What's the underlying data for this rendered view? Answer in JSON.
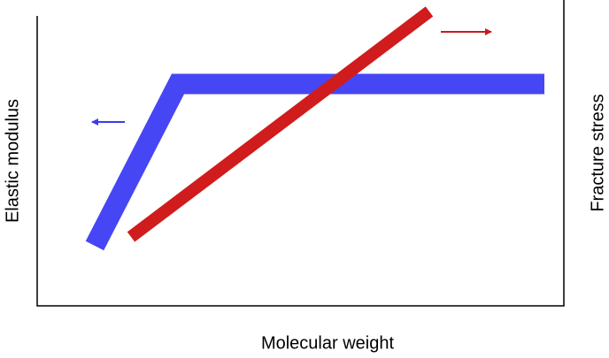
{
  "axes": {
    "x_label": "Molecular weight",
    "y_label": "Elastic modulus",
    "y2_label": "Fracture stress"
  }
}
